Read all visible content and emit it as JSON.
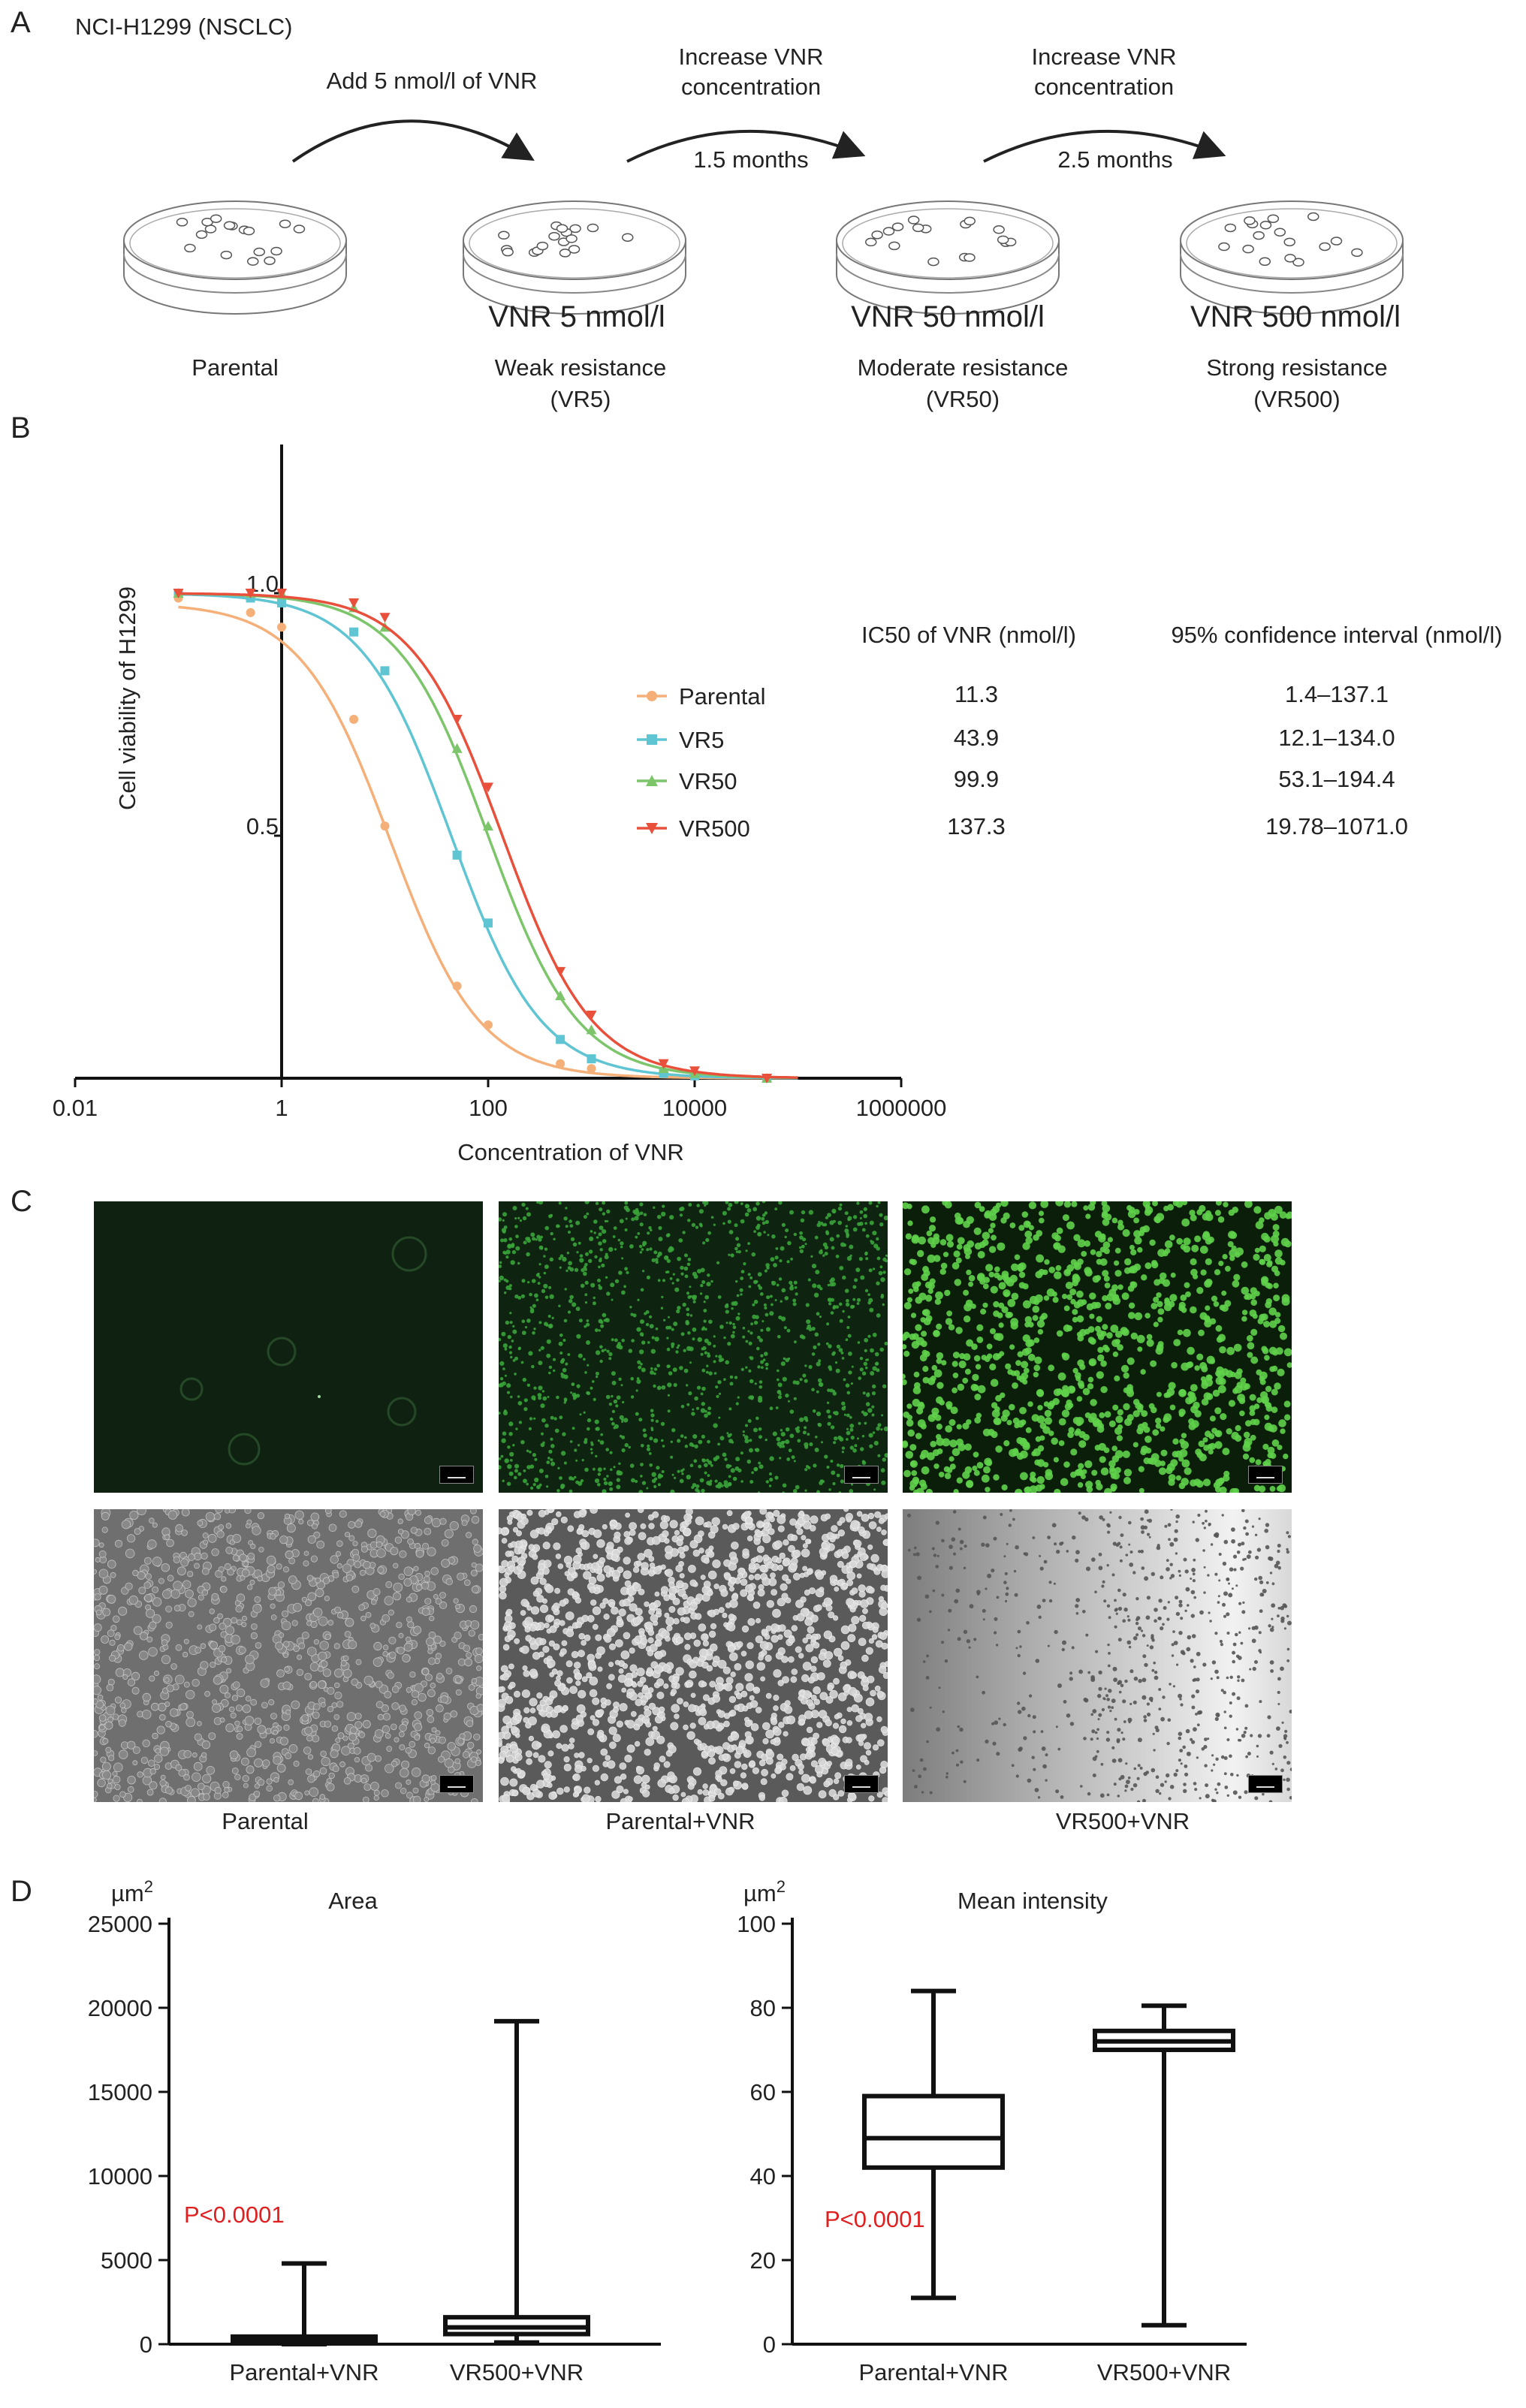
{
  "panels": {
    "a": "A",
    "b": "B",
    "c": "C",
    "d": "D"
  },
  "panel_a": {
    "cell_line": "NCI-H1299 (NSCLC)",
    "steps": [
      {
        "arrow_label": [
          "Add 5 nmol/l of VNR"
        ],
        "duration": ""
      },
      {
        "arrow_label": [
          "Increase VNR",
          "concentration"
        ],
        "duration": "1.5 months"
      },
      {
        "arrow_label": [
          "Increase VNR",
          "concentration"
        ],
        "duration": "2.5 months"
      }
    ],
    "dishes": [
      {
        "dish_label": "",
        "name": [
          "Parental"
        ]
      },
      {
        "dish_label": "VNR 5 nmol/l",
        "name": [
          "Weak resistance",
          "(VR5)"
        ]
      },
      {
        "dish_label": "VNR 50 nmol/l",
        "name": [
          "Moderate resistance",
          "(VR50)"
        ]
      },
      {
        "dish_label": "VNR 500 nmol/l",
        "name": [
          "Strong resistance",
          "(VR500)"
        ]
      }
    ]
  },
  "panel_b": {
    "table_headers": [
      "IC50 of VNR (nmol/l)",
      "95% confidence interval (nmol/l)"
    ],
    "table_rows": [
      {
        "name": "Parental",
        "ic50": "11.3",
        "ci": "1.4–137.1"
      },
      {
        "name": "VR5",
        "ic50": "43.9",
        "ci": "12.1–134.0"
      },
      {
        "name": "VR50",
        "ic50": "99.9",
        "ci": "53.1–194.4"
      },
      {
        "name": "VR500",
        "ic50": "137.3",
        "ci": "19.78–1071.0"
      }
    ]
  },
  "panel_c": {
    "captions": [
      "Parental",
      "Parental+VNR",
      "VR500+VNR"
    ]
  },
  "chart_data": [
    {
      "type": "line",
      "panel": "B",
      "xlabel": "Concentration of VNR",
      "ylabel": "Cell viability of H1299",
      "x_scale": "log10",
      "x_ticks": [
        "0.01",
        "1",
        "100",
        "10000",
        "1000000"
      ],
      "y_ticks": [
        "0.5",
        "1.0"
      ],
      "xlim": [
        0.01,
        1000000
      ],
      "ylim": [
        0,
        1.3
      ],
      "series": [
        {
          "name": "Parental",
          "color": "#f5b07a",
          "marker": "circle",
          "ic50": 11.3,
          "hill": 1.0,
          "x": [
            0.1,
            0.5,
            1,
            5,
            10,
            50,
            100,
            500,
            1000,
            5000,
            10000,
            50000
          ],
          "y": [
            0.99,
            0.96,
            0.93,
            0.74,
            0.52,
            0.19,
            0.11,
            0.03,
            0.02,
            0.01,
            0.005,
            0.0
          ]
        },
        {
          "name": "VR5",
          "color": "#5fc5d2",
          "marker": "square",
          "ic50": 43.9,
          "hill": 1.0,
          "x": [
            0.1,
            0.5,
            1,
            5,
            10,
            50,
            100,
            500,
            1000,
            5000,
            10000,
            50000
          ],
          "y": [
            1.0,
            0.99,
            0.98,
            0.92,
            0.84,
            0.46,
            0.32,
            0.08,
            0.04,
            0.01,
            0.005,
            0.0
          ]
        },
        {
          "name": "VR50",
          "color": "#7cc56a",
          "marker": "triangle-up",
          "ic50": 99.9,
          "hill": 1.0,
          "x": [
            0.1,
            0.5,
            1,
            5,
            10,
            50,
            100,
            500,
            1000,
            5000,
            10000,
            50000
          ],
          "y": [
            1.0,
            1.0,
            1.0,
            0.97,
            0.93,
            0.68,
            0.52,
            0.17,
            0.1,
            0.02,
            0.01,
            0.0
          ]
        },
        {
          "name": "VR500",
          "color": "#e8503c",
          "marker": "triangle-down",
          "ic50": 137.3,
          "hill": 1.0,
          "x": [
            0.1,
            0.5,
            1,
            5,
            10,
            50,
            100,
            500,
            1000,
            5000,
            10000,
            50000
          ],
          "y": [
            1.0,
            1.0,
            1.0,
            0.98,
            0.95,
            0.74,
            0.6,
            0.22,
            0.13,
            0.03,
            0.015,
            0.0
          ]
        }
      ]
    },
    {
      "type": "box",
      "panel": "D",
      "title": "Area",
      "unit": "µm²",
      "categories": [
        "Parental+VNR",
        "VR500+VNR"
      ],
      "ylim": [
        0,
        25000
      ],
      "y_ticks": [
        "0",
        "5000",
        "10000",
        "15000",
        "20000",
        "25000"
      ],
      "annotation": "P<0.0001",
      "boxes": [
        {
          "min": 0,
          "q1": 150,
          "median": 300,
          "q3": 450,
          "max": 4800
        },
        {
          "min": 100,
          "q1": 600,
          "median": 1000,
          "q3": 1600,
          "max": 19200
        }
      ]
    },
    {
      "type": "box",
      "panel": "D",
      "title": "Mean intensity",
      "unit": "µm²",
      "categories": [
        "Parental+VNR",
        "VR500+VNR"
      ],
      "ylim": [
        0,
        100
      ],
      "y_ticks": [
        "0",
        "20",
        "40",
        "60",
        "80",
        "100"
      ],
      "annotation": "P<0.0001",
      "boxes": [
        {
          "min": 11,
          "q1": 42,
          "median": 49,
          "q3": 59,
          "max": 84
        },
        {
          "min": 4.5,
          "q1": 70,
          "median": 72,
          "q3": 74.5,
          "max": 80.5
        }
      ]
    }
  ],
  "colors": {
    "annotation": "#e02020",
    "axis": "#111111"
  }
}
